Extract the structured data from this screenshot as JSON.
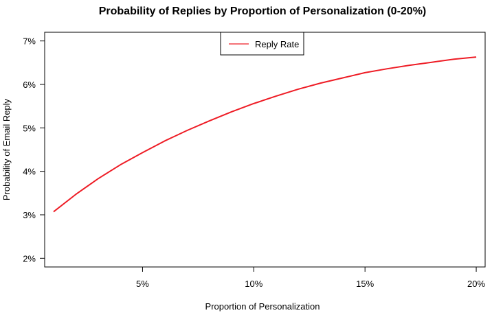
{
  "chart_data": {
    "type": "line",
    "title": "Probability of Replies by Proportion of Personalization (0-20%)",
    "xlabel": "Proportion of Personalization",
    "ylabel": "Probability of Email Reply",
    "xlim": [
      0.6,
      20.4
    ],
    "ylim": [
      1.8,
      7.2
    ],
    "x_ticks": [
      5,
      10,
      15,
      20
    ],
    "x_tick_labels": [
      "5%",
      "10%",
      "15%",
      "20%"
    ],
    "y_ticks": [
      2,
      3,
      4,
      5,
      6,
      7
    ],
    "y_tick_labels": [
      "2%",
      "3%",
      "4%",
      "5%",
      "6%",
      "7%"
    ],
    "grid": false,
    "legend_position": "top-center",
    "series": [
      {
        "name": "Reply Rate",
        "color": "#ee1c25",
        "x": [
          1,
          2,
          3,
          4,
          5,
          6,
          7,
          8,
          9,
          10,
          11,
          12,
          13,
          14,
          15,
          16,
          17,
          18,
          19,
          20
        ],
        "values": [
          3.07,
          3.47,
          3.83,
          4.15,
          4.43,
          4.7,
          4.94,
          5.16,
          5.37,
          5.56,
          5.73,
          5.89,
          6.03,
          6.15,
          6.27,
          6.36,
          6.44,
          6.51,
          6.58,
          6.63
        ]
      }
    ]
  }
}
